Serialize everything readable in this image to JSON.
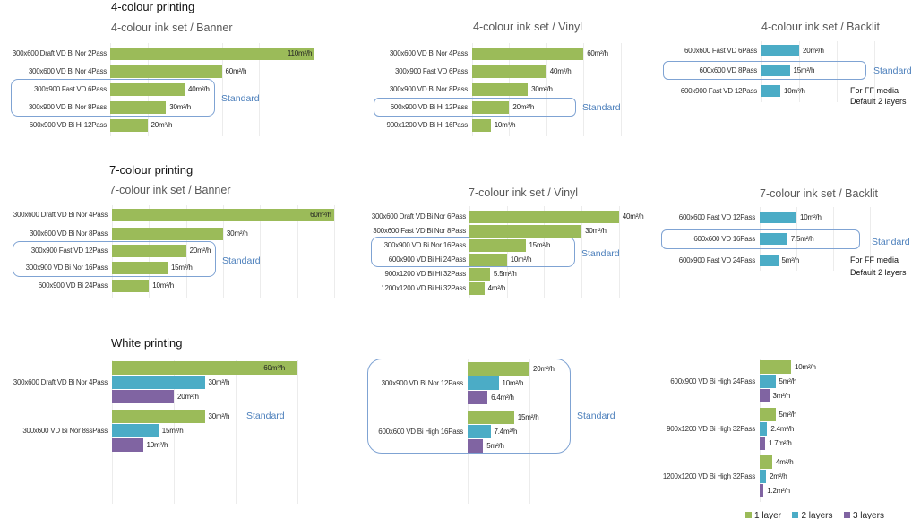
{
  "sections": [
    {
      "title": "4-colour printing"
    },
    {
      "title": "7-colour printing"
    },
    {
      "title": "White printing"
    }
  ],
  "standard_label": "Standard",
  "colors": {
    "layer1": "#9BBB59",
    "layer2": "#4BACC6",
    "layer3": "#8064A2",
    "standard": "#4A7EBB"
  },
  "legend": [
    {
      "label": "1 layer",
      "color": "#9BBB59"
    },
    {
      "label": "2 layers",
      "color": "#4BACC6"
    },
    {
      "label": "3 layers",
      "color": "#8064A2"
    }
  ],
  "chart_data": [
    {
      "type": "bar",
      "orientation": "horizontal",
      "section": "4-colour printing",
      "title": "4-colour ink set / Banner",
      "unit": "m²/h",
      "color": "#9BBB59",
      "grid": true,
      "categories": [
        "300x600 Draft VD Bi Nor 2Pass",
        "300x600 VD Bi Nor 4Pass",
        "300x900 Fast VD 6Pass",
        "300x900 VD Bi Nor 8Pass",
        "600x900 VD Bi Hi 12Pass"
      ],
      "values": [
        110,
        60,
        40,
        30,
        20
      ],
      "value_labels": [
        "110m²/h",
        "60m²/h",
        "40m²/h",
        "30m²/h",
        "20m²/h"
      ],
      "standard": [
        "300x900 Fast VD 6Pass",
        "300x900 VD Bi Nor 8Pass"
      ],
      "xlim": [
        0,
        110
      ]
    },
    {
      "type": "bar",
      "orientation": "horizontal",
      "section": "4-colour printing",
      "title": "4-colour ink set / Vinyl",
      "unit": "m²/h",
      "color": "#9BBB59",
      "grid": true,
      "categories": [
        "300x600 VD Bi Nor 4Pass",
        "300x900 Fast VD 6Pass",
        "300x900 VD Bi Nor 8Pass",
        "600x900 VD Bi Hi 12Pass",
        "900x1200 VD Bi Hi 16Pass"
      ],
      "values": [
        60,
        40,
        30,
        20,
        10
      ],
      "value_labels": [
        "60m²/h",
        "40m²/h",
        "30m²/h",
        "20m²/h",
        "10m²/h"
      ],
      "standard": [
        "600x900 VD Bi Hi 12Pass"
      ],
      "xlim": [
        0,
        80
      ]
    },
    {
      "type": "bar",
      "orientation": "horizontal",
      "section": "4-colour printing",
      "title": "4-colour ink set / Backlit",
      "unit": "m²/h",
      "color": "#4BACC6",
      "grid": true,
      "categories": [
        "600x600 Fast VD 6Pass",
        "600x600 VD 8Pass",
        "600x900 Fast VD 12Pass"
      ],
      "values": [
        20,
        15,
        10
      ],
      "value_labels": [
        "20m²/h",
        "15m²/h",
        "10m²/h"
      ],
      "standard": [
        "600x600 VD 8Pass"
      ],
      "notes": [
        "For FF media",
        "Default 2 layers"
      ],
      "xlim": [
        0,
        60
      ]
    },
    {
      "type": "bar",
      "orientation": "horizontal",
      "section": "7-colour printing",
      "title": "7-colour ink set / Banner",
      "unit": "m²/h",
      "color": "#9BBB59",
      "grid": true,
      "categories": [
        "300x600 Draft VD Bi Nor 4Pass",
        "300x600 VD Bi Nor 8Pass",
        "300x900 Fast VD 12Pass",
        "300x900 VD Bi Nor 16Pass",
        "600x900 VD Bi 24Pass"
      ],
      "values": [
        60,
        30,
        20,
        15,
        10
      ],
      "value_labels": [
        "60m²/h",
        "30m²/h",
        "20m²/h",
        "15m²/h",
        "10m²/h"
      ],
      "standard": [
        "300x900 Fast VD 12Pass",
        "300x900 VD Bi Nor 16Pass"
      ],
      "xlim": [
        0,
        60
      ]
    },
    {
      "type": "bar",
      "orientation": "horizontal",
      "section": "7-colour printing",
      "title": "7-colour ink set / Vinyl",
      "unit": "m²/h",
      "color": "#9BBB59",
      "grid": true,
      "categories": [
        "300x600 Draft VD Bi Nor 6Pass",
        "300x600 Fast VD Bi Nor 8Pass",
        "300x900 VD Bi Nor 16Pass",
        "600x900 VD Bi Hi 24Pass",
        "900x1200 VD Bi Hi 32Pass",
        "1200x1200 VD Bi Hi 32Pass"
      ],
      "values": [
        40,
        30,
        15,
        10,
        5.5,
        4
      ],
      "value_labels": [
        "40m²/h",
        "30m²/h",
        "15m²/h",
        "10m²/h",
        "5.5m²/h",
        "4m²/h"
      ],
      "standard": [
        "300x900 VD Bi Nor 16Pass",
        "600x900 VD Bi Hi 24Pass"
      ],
      "xlim": [
        0,
        40
      ]
    },
    {
      "type": "bar",
      "orientation": "horizontal",
      "section": "7-colour printing",
      "title": "7-colour ink set / Backlit",
      "unit": "m²/h",
      "color": "#4BACC6",
      "grid": true,
      "categories": [
        "600x600 Fast VD 12Pass",
        "600x600 VD 16Pass",
        "600x900 Fast VD 24Pass"
      ],
      "values": [
        10,
        7.5,
        5
      ],
      "value_labels": [
        "10m²/h",
        "7.5m²/h",
        "5m²/h"
      ],
      "standard": [
        "600x600 VD 16Pass"
      ],
      "notes": [
        "For FF media",
        "Default 2 layers"
      ],
      "xlim": [
        0,
        30
      ]
    },
    {
      "type": "bar",
      "orientation": "horizontal",
      "grouped": true,
      "section": "White printing",
      "unit": "m²/h",
      "grid": true,
      "categories": [
        "300x600 Draft VD Bi Nor 4Pass",
        "300x600 VD Bi Nor 8ssPass"
      ],
      "series": [
        {
          "name": "1 layer",
          "color": "#9BBB59",
          "values": [
            60,
            30
          ],
          "value_labels": [
            "60m²/h",
            "30m²/h"
          ]
        },
        {
          "name": "2 layers",
          "color": "#4BACC6",
          "values": [
            30,
            15
          ],
          "value_labels": [
            "30m²/h",
            "15m²/h"
          ]
        },
        {
          "name": "3 layers",
          "color": "#8064A2",
          "values": [
            20,
            10
          ],
          "value_labels": [
            "20m²/h",
            "10m²/h"
          ]
        }
      ],
      "standard": [
        "300x600 VD Bi Nor 8ssPass"
      ],
      "xlim": [
        0,
        60
      ]
    },
    {
      "type": "bar",
      "orientation": "horizontal",
      "grouped": true,
      "section": "White printing",
      "unit": "m²/h",
      "grid": true,
      "categories": [
        "300x900 VD Bi Nor 12Pass",
        "600x600 VD Bi High 16Pass"
      ],
      "series": [
        {
          "name": "1 layer",
          "color": "#9BBB59",
          "values": [
            20,
            15
          ],
          "value_labels": [
            "20m²/h",
            "15m²/h"
          ]
        },
        {
          "name": "2 layers",
          "color": "#4BACC6",
          "values": [
            10,
            7.4
          ],
          "value_labels": [
            "10m²/h",
            "7.4m²/h"
          ]
        },
        {
          "name": "3 layers",
          "color": "#8064A2",
          "values": [
            6.4,
            5
          ],
          "value_labels": [
            "6.4m²/h",
            "5m²/h"
          ]
        }
      ],
      "standard": [
        "300x900 VD Bi Nor 12Pass",
        "600x600 VD Bi High 16Pass"
      ],
      "xlim": [
        0,
        20
      ]
    },
    {
      "type": "bar",
      "orientation": "horizontal",
      "grouped": true,
      "section": "White printing",
      "unit": "m²/h",
      "grid": true,
      "categories": [
        "600x900 VD Bi High 24Pass",
        "900x1200 VD Bi High 32Pass",
        "1200x1200 VD Bi High 32Pass"
      ],
      "series": [
        {
          "name": "1 layer",
          "color": "#9BBB59",
          "values": [
            10,
            5,
            4
          ],
          "value_labels": [
            "10m²/h",
            "5m²/h",
            "4m²/h"
          ]
        },
        {
          "name": "2 layers",
          "color": "#4BACC6",
          "values": [
            5,
            2.4,
            2
          ],
          "value_labels": [
            "5m²/h",
            "2.4m²/h",
            "2m²/h"
          ]
        },
        {
          "name": "3 layers",
          "color": "#8064A2",
          "values": [
            3,
            1.7,
            1.2
          ],
          "value_labels": [
            "3m²/h",
            "1.7m²/h",
            "1.2m²/h"
          ]
        }
      ],
      "legend_position": "bottom",
      "xlim": [
        0,
        10
      ]
    }
  ]
}
